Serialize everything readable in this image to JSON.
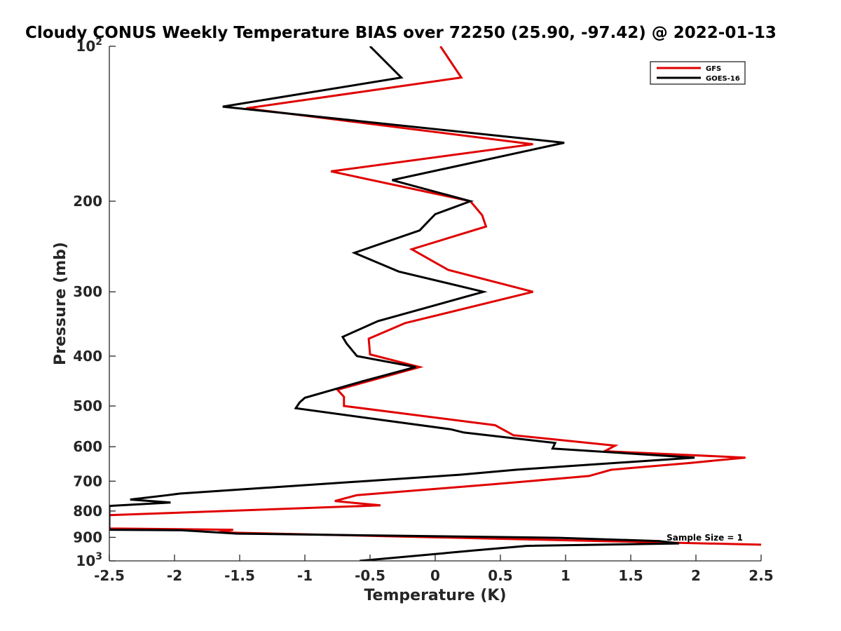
{
  "chart_data": {
    "type": "line",
    "title": "Cloudy CONUS Weekly Temperature BIAS over 72250 (25.90, -97.42) @ 2022-01-13",
    "xlabel": "Temperature (K)",
    "ylabel": "Pressure (mb)",
    "xlim": [
      -2.5,
      2.5
    ],
    "ylim": [
      100,
      1000
    ],
    "y_scale": "log",
    "y_reversed": true,
    "grid": false,
    "legend_position": "top-right",
    "x_ticks": [
      "-2.5",
      "-2",
      "-1.5",
      "-1",
      "-0.5",
      "0",
      "0.5",
      "1",
      "1.5",
      "2",
      "2.5"
    ],
    "y_ticks": [
      {
        "value": 100,
        "label": "10",
        "sup": "2"
      },
      {
        "value": 200,
        "label": "200"
      },
      {
        "value": 300,
        "label": "300"
      },
      {
        "value": 400,
        "label": "400"
      },
      {
        "value": 500,
        "label": "500"
      },
      {
        "value": 600,
        "label": "600"
      },
      {
        "value": 700,
        "label": "700"
      },
      {
        "value": 800,
        "label": "800"
      },
      {
        "value": 900,
        "label": "900"
      },
      {
        "value": 1000,
        "label": "10",
        "sup": "3"
      }
    ],
    "annotation": "Sample Size = 1",
    "series": [
      {
        "name": "GFS",
        "color": "#e00000",
        "points": [
          [
            0.04,
            100
          ],
          [
            0.2,
            115
          ],
          [
            -1.45,
            132
          ],
          [
            0.75,
            155
          ],
          [
            -0.8,
            175
          ],
          [
            0.27,
            200
          ],
          [
            0.36,
            213
          ],
          [
            0.39,
            224
          ],
          [
            -0.18,
            248
          ],
          [
            0.1,
            272
          ],
          [
            0.75,
            300
          ],
          [
            -0.23,
            345
          ],
          [
            -0.51,
            370
          ],
          [
            -0.5,
            397
          ],
          [
            -0.12,
            420
          ],
          [
            -0.75,
            465
          ],
          [
            -0.7,
            480
          ],
          [
            -0.7,
            500
          ],
          [
            0.46,
            545
          ],
          [
            0.6,
            570
          ],
          [
            1.38,
            597
          ],
          [
            1.3,
            612
          ],
          [
            2.38,
            630
          ],
          [
            1.96,
            645
          ],
          [
            1.35,
            665
          ],
          [
            1.18,
            684
          ],
          [
            0.44,
            710
          ],
          [
            -0.6,
            745
          ],
          [
            -0.77,
            765
          ],
          [
            -0.42,
            780
          ],
          [
            -2.5,
            815
          ],
          [
            -2.5,
            865
          ],
          [
            -1.55,
            870
          ],
          [
            -1.67,
            880
          ],
          [
            2.5,
            930
          ]
        ]
      },
      {
        "name": "GOES-16",
        "color": "#000000",
        "points": [
          [
            -0.5,
            100
          ],
          [
            -0.26,
            115
          ],
          [
            -1.63,
            131
          ],
          [
            0.99,
            154
          ],
          [
            -0.33,
            182
          ],
          [
            0.27,
            200
          ],
          [
            0.0,
            212
          ],
          [
            -0.12,
            228
          ],
          [
            -0.62,
            252
          ],
          [
            -0.28,
            274
          ],
          [
            0.37,
            300
          ],
          [
            -0.44,
            342
          ],
          [
            -0.71,
            367
          ],
          [
            -0.68,
            378
          ],
          [
            -0.6,
            400
          ],
          [
            -0.15,
            420
          ],
          [
            -0.56,
            448
          ],
          [
            -1.0,
            482
          ],
          [
            -1.04,
            492
          ],
          [
            -1.07,
            505
          ],
          [
            -0.37,
            534
          ],
          [
            0.12,
            555
          ],
          [
            0.22,
            563
          ],
          [
            0.92,
            590
          ],
          [
            0.9,
            605
          ],
          [
            1.99,
            630
          ],
          [
            1.0,
            655
          ],
          [
            0.62,
            665
          ],
          [
            0.19,
            680
          ],
          [
            -1.96,
            740
          ],
          [
            -2.05,
            745
          ],
          [
            -2.34,
            760
          ],
          [
            -2.03,
            770
          ],
          [
            -2.5,
            782
          ],
          [
            -2.5,
            870
          ],
          [
            -1.95,
            872
          ],
          [
            -1.52,
            885
          ],
          [
            0.95,
            902
          ],
          [
            1.72,
            915
          ],
          [
            1.87,
            925
          ],
          [
            0.7,
            935
          ],
          [
            0.29,
            955
          ],
          [
            -0.58,
            1000
          ]
        ]
      }
    ]
  }
}
